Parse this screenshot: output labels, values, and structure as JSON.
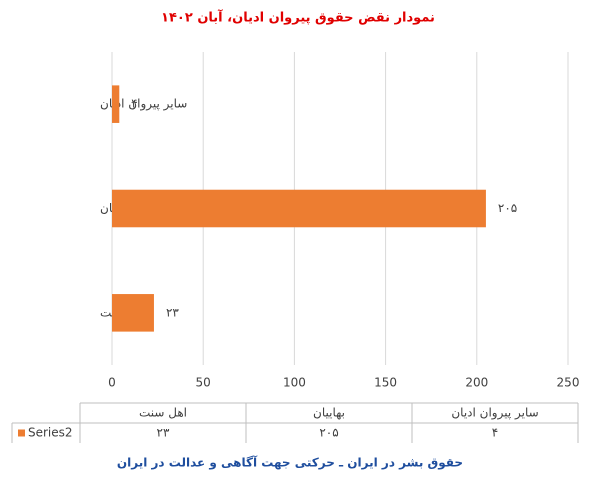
{
  "chart_data": {
    "type": "bar",
    "orientation": "horizontal",
    "title": "نمودار نقض حقوق پیروان ادیان، آبان ۱۴۰۲",
    "categories": [
      "اهل سنت",
      "بهاییان",
      "سایر پیروان ادیان"
    ],
    "series": [
      {
        "name": "Series2",
        "color": "#ed7d31",
        "values": [
          23,
          205,
          4
        ],
        "value_labels": [
          "۲۳",
          "۲۰۵",
          "۴"
        ]
      }
    ],
    "xlim": [
      0,
      250
    ],
    "xticks": [
      0,
      50,
      100,
      150,
      200,
      250
    ],
    "grid": true,
    "data_table": true,
    "footer": "حقوق بشر در ایران ـ حرکتی جهت آگاهی و عدالت در ایران"
  }
}
